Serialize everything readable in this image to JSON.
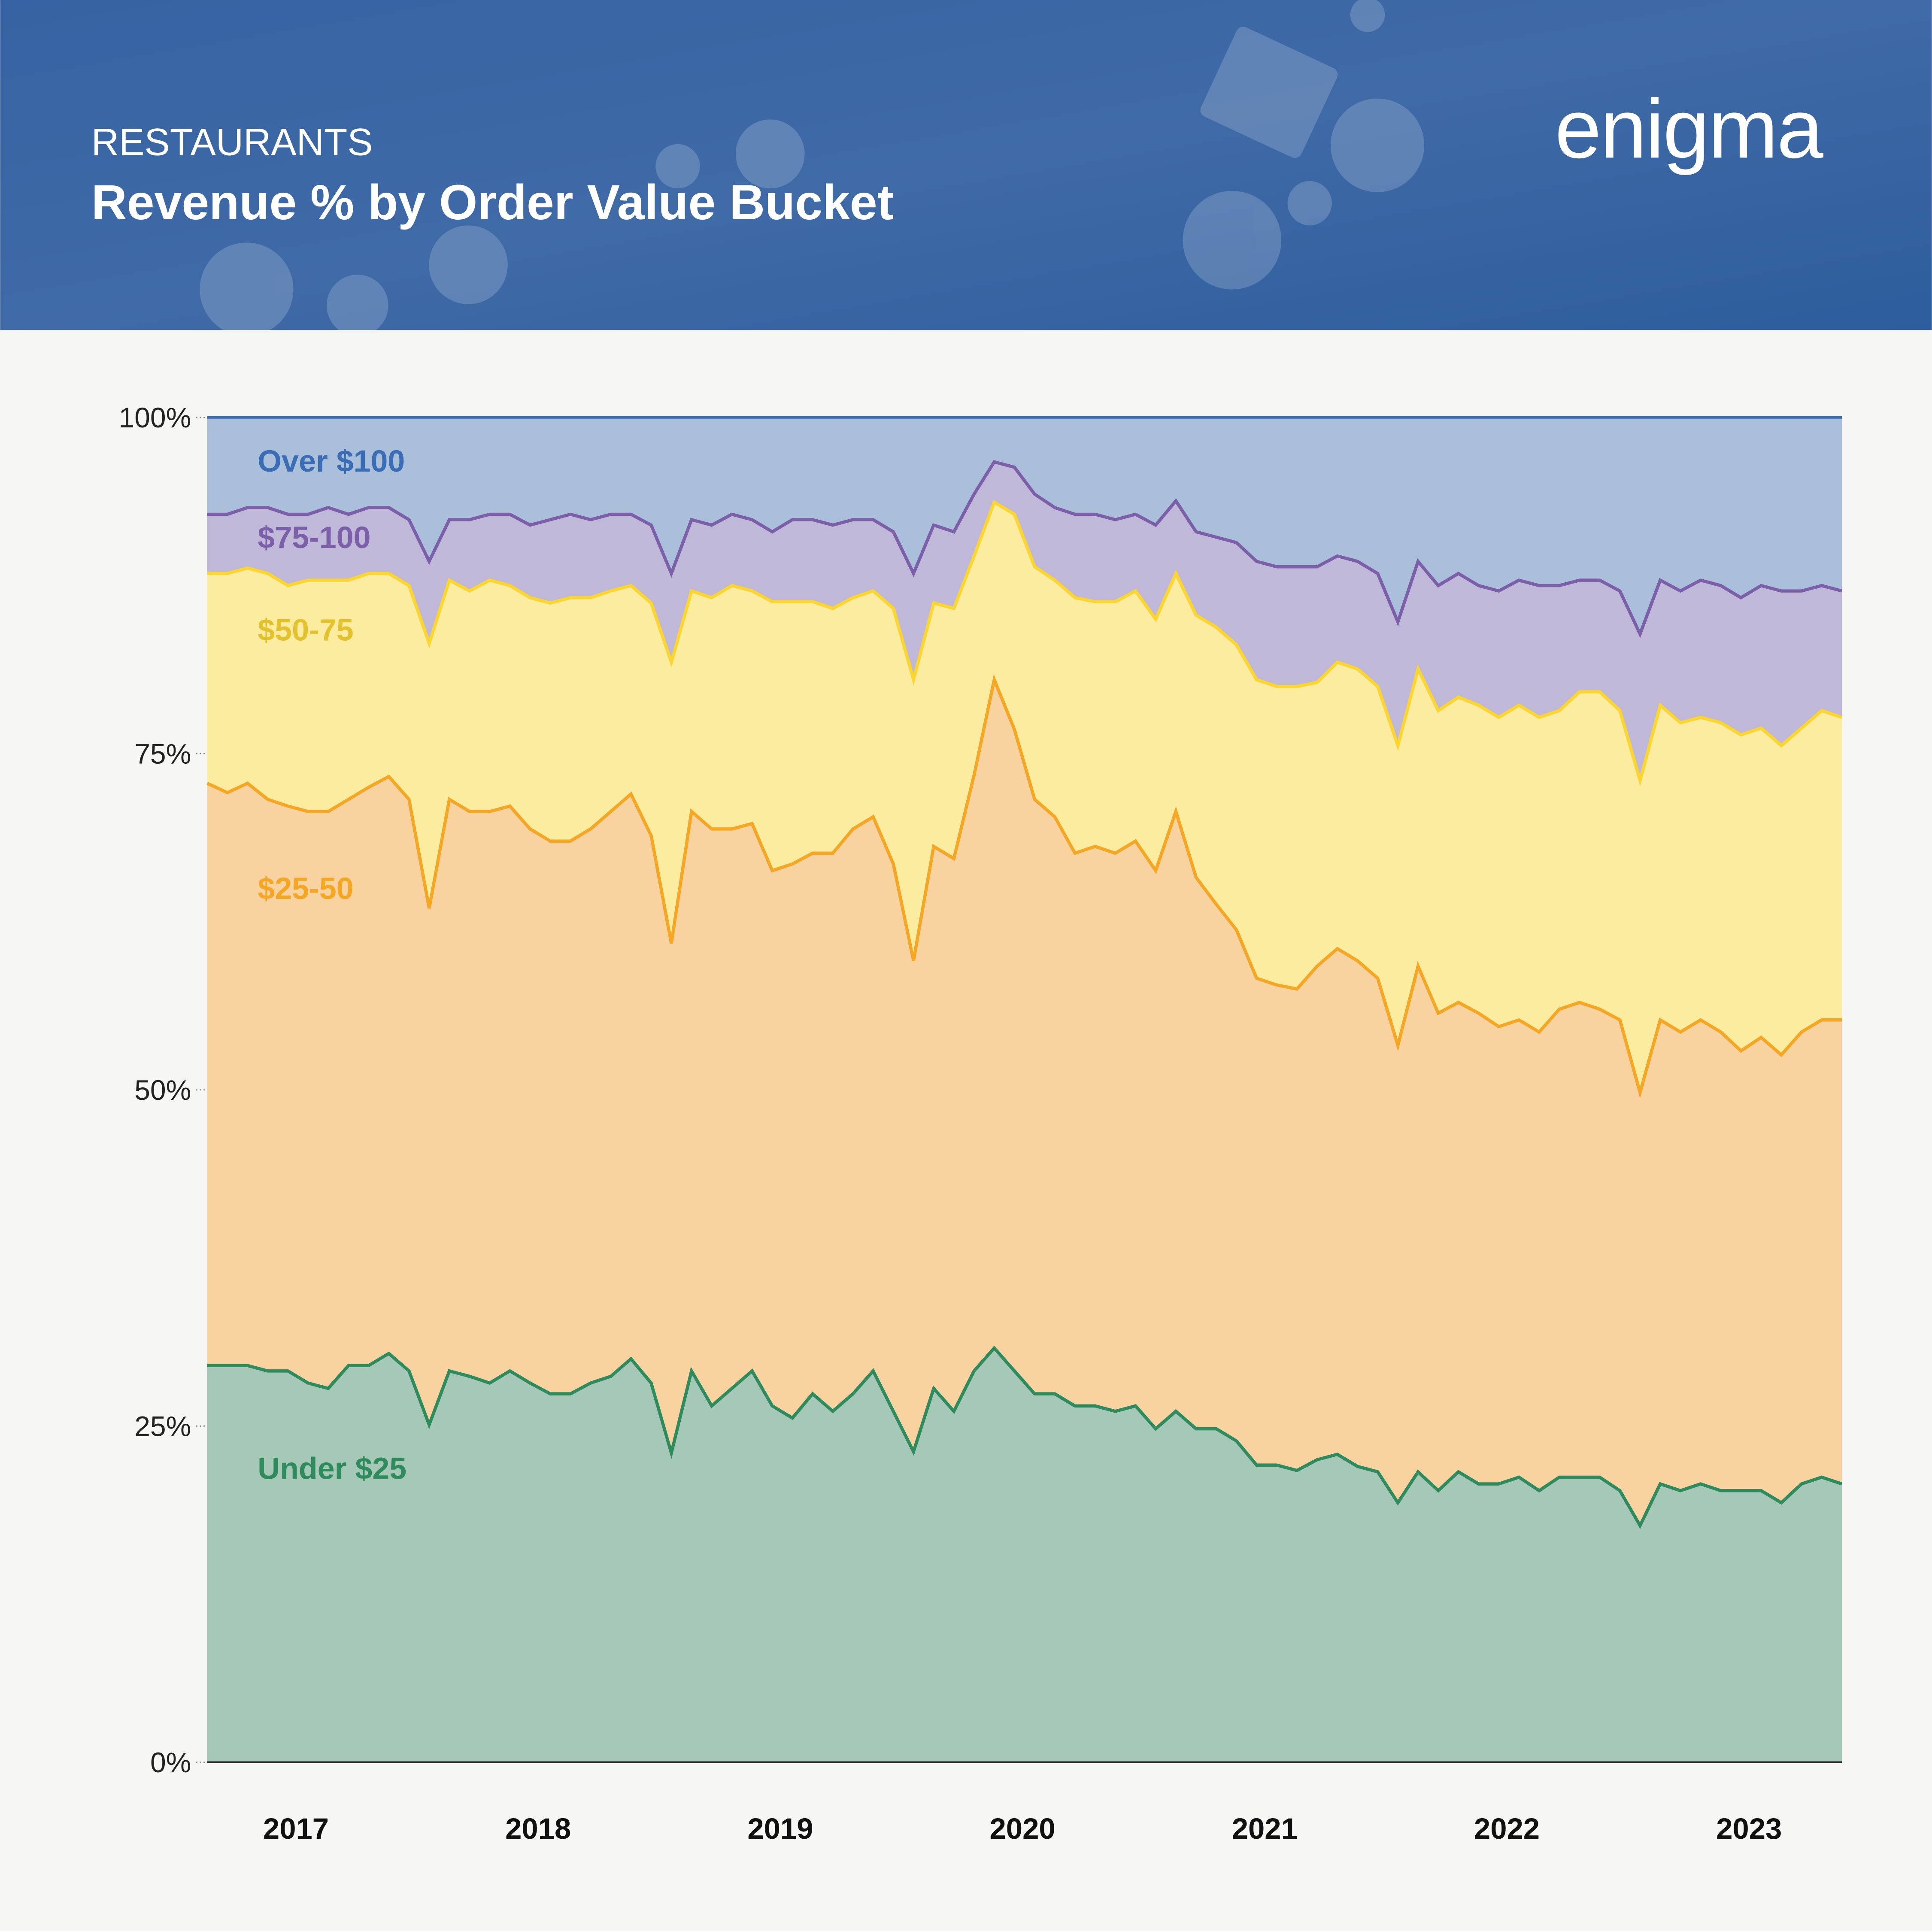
{
  "header": {
    "category": "RESTAURANTS",
    "title": "Revenue % by Order Value Bucket",
    "logo_text": "enigma",
    "background_color": "#2f5f9e"
  },
  "chart_data": {
    "type": "area",
    "stacked": true,
    "title": "Revenue % by Order Value Bucket",
    "xlabel": "",
    "ylabel": "",
    "ylim": [
      0,
      100
    ],
    "y_ticks": [
      "0%",
      "25%",
      "50%",
      "75%",
      "100%"
    ],
    "x_ticks": [
      "2017",
      "2018",
      "2019",
      "2020",
      "2021",
      "2022",
      "2023"
    ],
    "grid": false,
    "legend": "inline labels, left",
    "series": [
      {
        "name": "Under $25",
        "line_color": "#2e8b5e",
        "fill_color": "#a5c8b7",
        "y": [
          29.5,
          29.5,
          29.5,
          29.1,
          29.1,
          28.2,
          27.8,
          29.5,
          29.5,
          30.4,
          29.1,
          25.1,
          29.1,
          28.7,
          28.2,
          29.1,
          28.2,
          27.4,
          27.4,
          28.2,
          28.7,
          30.0,
          28.2,
          23.0,
          29.1,
          26.5,
          27.8,
          29.1,
          26.5,
          25.6,
          27.4,
          26.1,
          27.4,
          29.1,
          26.1,
          23.1,
          27.8,
          26.1,
          29.1,
          30.8,
          29.1,
          27.4,
          27.4,
          26.5,
          26.5,
          26.1,
          26.5,
          24.8,
          26.1,
          24.8,
          24.8,
          23.9,
          22.1,
          22.1,
          21.7,
          22.5,
          22.9,
          22.0,
          21.6,
          19.3,
          21.6,
          20.2,
          21.6,
          20.7,
          20.7,
          21.2,
          20.2,
          21.2,
          21.2,
          21.2,
          20.2,
          17.6,
          20.7,
          20.2,
          20.7,
          20.2,
          20.2,
          20.2,
          19.3,
          20.7,
          21.2,
          20.7
        ]
      },
      {
        "name": "$25-50",
        "line_color": "#f5a623",
        "fill_color": "#f8d3a0",
        "y": [
          72.8,
          72.1,
          72.8,
          71.6,
          71.1,
          70.7,
          70.7,
          71.6,
          72.5,
          73.3,
          71.6,
          63.5,
          71.6,
          70.7,
          70.7,
          71.1,
          69.4,
          68.5,
          68.5,
          69.4,
          70.7,
          72.0,
          68.9,
          60.9,
          70.7,
          69.4,
          69.4,
          69.8,
          66.3,
          66.8,
          67.6,
          67.6,
          69.4,
          70.3,
          66.8,
          59.6,
          68.1,
          67.2,
          73.4,
          80.5,
          76.8,
          71.6,
          70.3,
          67.6,
          68.1,
          67.6,
          68.5,
          66.3,
          70.7,
          65.8,
          63.8,
          61.9,
          58.3,
          57.8,
          57.5,
          59.2,
          60.5,
          59.6,
          58.3,
          53.3,
          59.2,
          55.7,
          56.5,
          55.7,
          54.7,
          55.2,
          54.3,
          56.0,
          56.5,
          56.0,
          55.2,
          49.8,
          55.2,
          54.3,
          55.2,
          54.3,
          52.9,
          53.9,
          52.6,
          54.3,
          55.2,
          55.2
        ]
      },
      {
        "name": "$50-75",
        "line_color": "#fcd62f",
        "fill_color": "#fbeca0",
        "y": [
          88.4,
          88.4,
          88.8,
          88.4,
          87.5,
          87.9,
          87.9,
          87.9,
          88.4,
          88.4,
          87.5,
          83.2,
          87.9,
          87.1,
          87.9,
          87.5,
          86.6,
          86.2,
          86.6,
          86.6,
          87.1,
          87.5,
          86.2,
          81.8,
          87.1,
          86.6,
          87.5,
          87.1,
          86.3,
          86.3,
          86.3,
          85.8,
          86.6,
          87.1,
          85.8,
          80.5,
          86.2,
          85.8,
          89.7,
          93.7,
          92.8,
          88.9,
          87.9,
          86.6,
          86.3,
          86.3,
          87.1,
          85.0,
          88.4,
          85.3,
          84.4,
          83.1,
          80.5,
          80.0,
          80.0,
          80.3,
          81.8,
          81.3,
          80.0,
          75.6,
          81.3,
          78.2,
          79.2,
          78.6,
          77.7,
          78.6,
          77.7,
          78.2,
          79.6,
          79.6,
          78.2,
          73.0,
          78.6,
          77.3,
          77.7,
          77.3,
          76.4,
          76.9,
          75.6,
          76.9,
          78.2,
          77.7
        ]
      },
      {
        "name": "$75-100",
        "line_color": "#7b5fa8",
        "fill_color": "#c0b8d8",
        "y": [
          92.8,
          92.8,
          93.3,
          93.3,
          92.8,
          92.8,
          93.3,
          92.8,
          93.3,
          93.3,
          92.4,
          89.3,
          92.4,
          92.4,
          92.8,
          92.8,
          92.0,
          92.4,
          92.8,
          92.4,
          92.8,
          92.8,
          92.0,
          88.4,
          92.4,
          92.0,
          92.8,
          92.4,
          91.5,
          92.4,
          92.4,
          92.0,
          92.4,
          92.4,
          91.5,
          88.4,
          92.0,
          91.5,
          94.3,
          96.7,
          96.3,
          94.3,
          93.3,
          92.8,
          92.8,
          92.4,
          92.8,
          92.0,
          93.8,
          91.5,
          91.1,
          90.7,
          89.3,
          88.9,
          88.9,
          88.9,
          89.7,
          89.3,
          88.4,
          84.8,
          89.3,
          87.5,
          88.4,
          87.5,
          87.1,
          87.9,
          87.5,
          87.5,
          87.9,
          87.9,
          87.1,
          83.9,
          87.9,
          87.1,
          87.9,
          87.5,
          86.6,
          87.5,
          87.1,
          87.1,
          87.5,
          87.1
        ]
      },
      {
        "name": "Over $100",
        "line_color": "#3a6db5",
        "fill_color": "#aac0da",
        "y": "top"
      }
    ],
    "label_colors": {
      "Over $100": "#3a6db5",
      "$75-100": "#7b5fa8",
      "$50-75": "#e3c22d",
      "$25-50": "#f5a623",
      "Under $25": "#2e8b5e"
    }
  }
}
